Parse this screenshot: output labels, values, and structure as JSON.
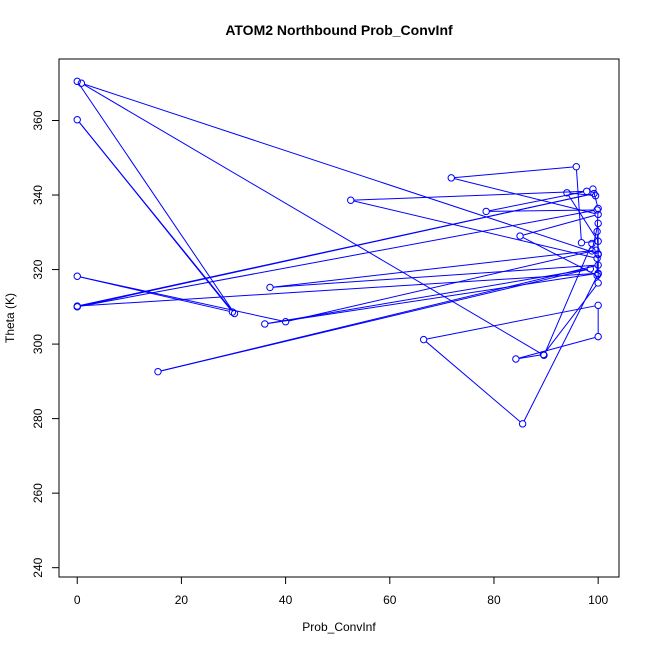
{
  "chart_data": {
    "type": "line",
    "title": "ATOM2 Northbound Prob_ConvInf",
    "xlabel": "Prob_ConvInf",
    "ylabel": "Theta (K)",
    "xlim": [
      -3.5,
      104
    ],
    "ylim": [
      237.5,
      376.5
    ],
    "xticks": [
      0,
      20,
      40,
      60,
      80,
      100
    ],
    "yticks": [
      240,
      260,
      280,
      300,
      320,
      340,
      360
    ],
    "grid": false,
    "legend": "none",
    "series": [
      {
        "color": "#0000ff",
        "points": [
          [
            0,
            370.5
          ],
          [
            30.2,
            308.2
          ],
          [
            0,
            360.2
          ],
          [
            29.8,
            308.6
          ],
          [
            0,
            318.2
          ],
          [
            40.0,
            306.0
          ],
          [
            99.6,
            325.2
          ],
          [
            37.0,
            315.2
          ],
          [
            100.0,
            321.2
          ],
          [
            15.5,
            292.6
          ],
          [
            98.5,
            320.2
          ],
          [
            36.0,
            305.4
          ],
          [
            100.0,
            319.0
          ],
          [
            0,
            310.2
          ],
          [
            99.2,
            340.4
          ],
          [
            0,
            310.0
          ],
          [
            99.8,
            336.0
          ],
          [
            78.5,
            335.6
          ],
          [
            97.8,
            341.0
          ],
          [
            52.5,
            338.6
          ],
          [
            99.8,
            323.0
          ],
          [
            99.8,
            318.4
          ],
          [
            85.0,
            329.0
          ],
          [
            100.0,
            334.8
          ],
          [
            71.8,
            344.6
          ],
          [
            95.8,
            347.6
          ],
          [
            96.8,
            327.2
          ],
          [
            100.0,
            327.6
          ],
          [
            94.0,
            340.6
          ],
          [
            99.5,
            339.8
          ],
          [
            99.0,
            341.6
          ],
          [
            100.0,
            336.4
          ],
          [
            99.8,
            330.2
          ],
          [
            100.0,
            324.0
          ],
          [
            98.8,
            325.0
          ],
          [
            100.0,
            332.4
          ],
          [
            100.0,
            318.8
          ],
          [
            85.5,
            278.6
          ],
          [
            66.5,
            301.2
          ],
          [
            100.0,
            310.4
          ],
          [
            100.0,
            302.0
          ],
          [
            84.2,
            296.0
          ],
          [
            89.5,
            297.2
          ],
          [
            100.0,
            316.4
          ],
          [
            100.0,
            324.2
          ],
          [
            0.8,
            370.0
          ],
          [
            89.6,
            297.0
          ],
          [
            98.8,
            327.0
          ]
        ]
      }
    ]
  }
}
